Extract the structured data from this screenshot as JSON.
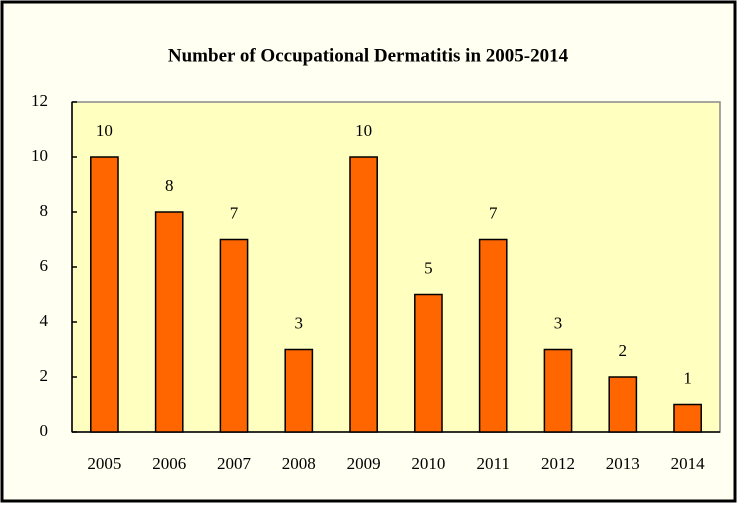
{
  "chart_data": {
    "type": "bar",
    "title": "Number of Occupational Dermatitis in 2005-2014",
    "categories": [
      "2005",
      "2006",
      "2007",
      "2008",
      "2009",
      "2010",
      "2011",
      "2012",
      "2013",
      "2014"
    ],
    "values": [
      10,
      8,
      7,
      3,
      10,
      5,
      7,
      3,
      2,
      1
    ],
    "color": "#ff6600",
    "ylim": [
      0,
      12
    ],
    "yticks": [
      0,
      2,
      4,
      6,
      8,
      10,
      12
    ],
    "grid": false
  }
}
